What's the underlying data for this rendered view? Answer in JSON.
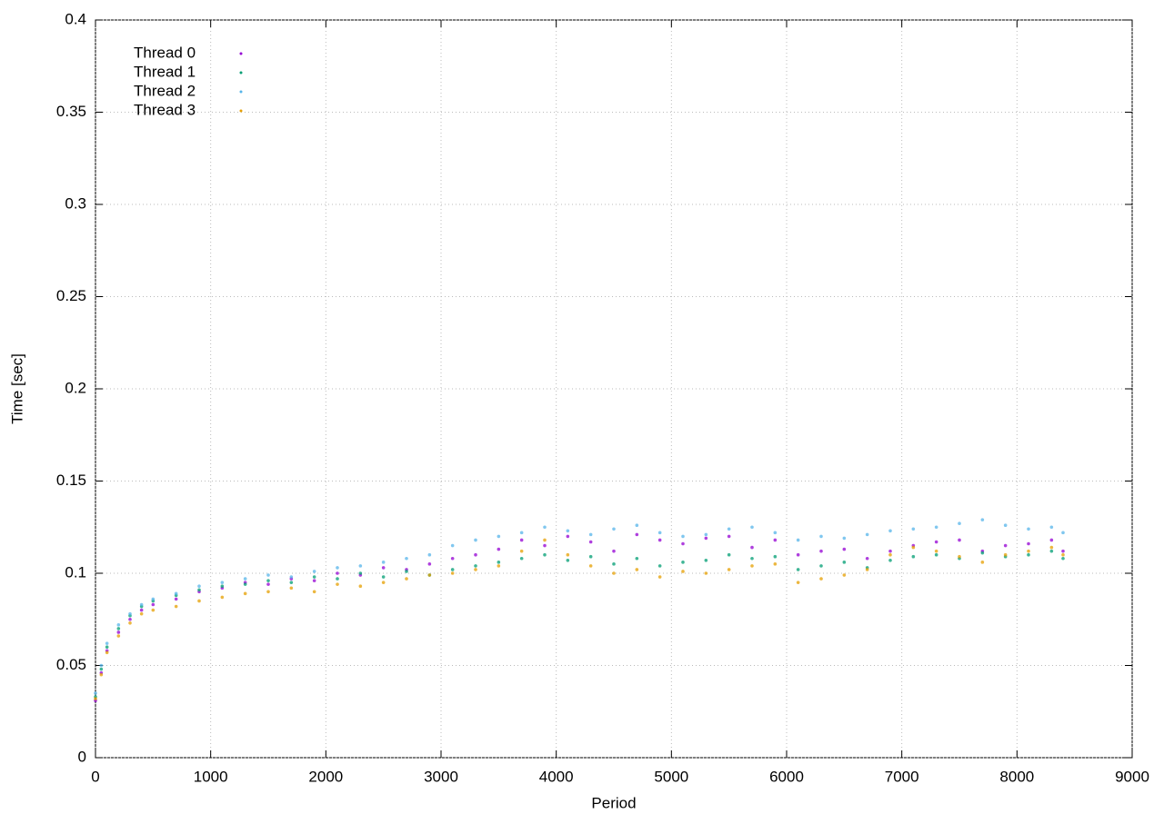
{
  "chart_data": {
    "type": "scatter",
    "xlabel": "Period",
    "ylabel": "Time [sec]",
    "xlim": [
      0,
      9000
    ],
    "xticks": [
      0,
      1000,
      2000,
      3000,
      4000,
      5000,
      6000,
      7000,
      8000,
      9000
    ],
    "ylim": [
      0,
      0.4
    ],
    "yticks": [
      0,
      0.05,
      0.1,
      0.15,
      0.2,
      0.25,
      0.3,
      0.35,
      0.4
    ],
    "grid": true,
    "legend": "top-left",
    "x": [
      0,
      50,
      100,
      200,
      300,
      400,
      500,
      700,
      900,
      1100,
      1300,
      1500,
      1700,
      1900,
      2100,
      2300,
      2500,
      2700,
      2900,
      3100,
      3300,
      3500,
      3700,
      3900,
      4100,
      4300,
      4500,
      4700,
      4900,
      5100,
      5300,
      5500,
      5700,
      5900,
      6100,
      6300,
      6500,
      6700,
      6900,
      7100,
      7300,
      7500,
      7700,
      7900,
      8100,
      8300,
      8400
    ],
    "series": [
      {
        "name": "Thread 0",
        "color": "#9400d3",
        "values": [
          0.031,
          0.046,
          0.058,
          0.068,
          0.075,
          0.08,
          0.083,
          0.086,
          0.09,
          0.092,
          0.095,
          0.094,
          0.097,
          0.096,
          0.1,
          0.099,
          0.103,
          0.102,
          0.105,
          0.108,
          0.11,
          0.113,
          0.118,
          0.115,
          0.12,
          0.117,
          0.112,
          0.121,
          0.118,
          0.116,
          0.119,
          0.12,
          0.114,
          0.118,
          0.11,
          0.112,
          0.113,
          0.108,
          0.112,
          0.115,
          0.117,
          0.118,
          0.112,
          0.115,
          0.116,
          0.118,
          0.112
        ]
      },
      {
        "name": "Thread 1",
        "color": "#009e73",
        "values": [
          0.033,
          0.048,
          0.06,
          0.07,
          0.077,
          0.082,
          0.085,
          0.088,
          0.091,
          0.093,
          0.094,
          0.096,
          0.095,
          0.098,
          0.097,
          0.1,
          0.098,
          0.101,
          0.099,
          0.102,
          0.104,
          0.106,
          0.108,
          0.11,
          0.107,
          0.109,
          0.105,
          0.108,
          0.104,
          0.106,
          0.107,
          0.11,
          0.108,
          0.109,
          0.102,
          0.104,
          0.106,
          0.103,
          0.107,
          0.109,
          0.11,
          0.108,
          0.111,
          0.109,
          0.11,
          0.112,
          0.108
        ]
      },
      {
        "name": "Thread 2",
        "color": "#56b4e9",
        "values": [
          0.035,
          0.05,
          0.062,
          0.072,
          0.078,
          0.083,
          0.086,
          0.089,
          0.093,
          0.095,
          0.097,
          0.099,
          0.098,
          0.101,
          0.103,
          0.104,
          0.106,
          0.108,
          0.11,
          0.115,
          0.118,
          0.12,
          0.122,
          0.125,
          0.123,
          0.121,
          0.124,
          0.126,
          0.122,
          0.12,
          0.121,
          0.124,
          0.125,
          0.122,
          0.118,
          0.12,
          0.119,
          0.121,
          0.123,
          0.124,
          0.125,
          0.127,
          0.129,
          0.126,
          0.124,
          0.125,
          0.122
        ]
      },
      {
        "name": "Thread 3",
        "color": "#e69f00",
        "values": [
          0.032,
          0.045,
          0.057,
          0.066,
          0.073,
          0.078,
          0.08,
          0.082,
          0.085,
          0.087,
          0.089,
          0.09,
          0.092,
          0.09,
          0.094,
          0.093,
          0.095,
          0.097,
          0.099,
          0.1,
          0.102,
          0.104,
          0.112,
          0.118,
          0.11,
          0.104,
          0.1,
          0.102,
          0.098,
          0.101,
          0.1,
          0.102,
          0.104,
          0.105,
          0.095,
          0.097,
          0.099,
          0.102,
          0.11,
          0.114,
          0.112,
          0.109,
          0.106,
          0.11,
          0.112,
          0.114,
          0.11
        ]
      }
    ]
  }
}
